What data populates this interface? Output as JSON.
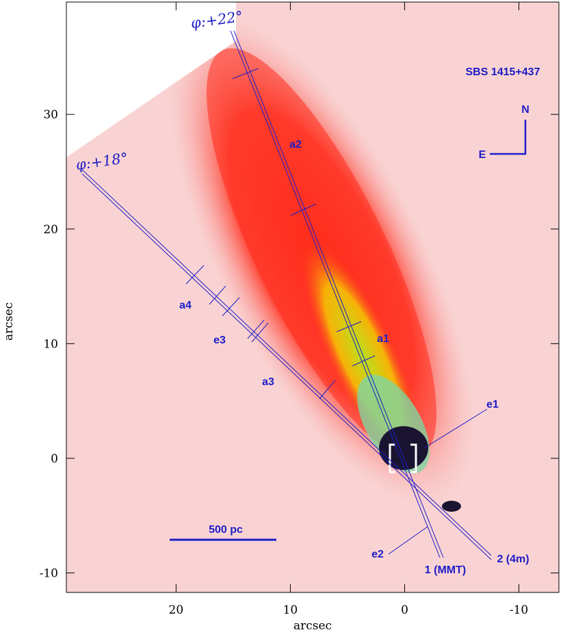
{
  "chart_data": {
    "type": "image",
    "title": "SBS 1415+437",
    "xlabel": "arcsec",
    "ylabel": "arcsec",
    "xlim": [
      29.6,
      -13.5
    ],
    "ylim": [
      -11.7,
      39.8
    ],
    "xticks": [
      20,
      10,
      0,
      -10
    ],
    "yticks": [
      -10,
      0,
      10,
      20,
      30
    ],
    "compass": [
      "N",
      "E"
    ],
    "scale_bar": "500 pc",
    "annotations": [
      "φ:+22°",
      "φ:+18°",
      "a1",
      "a2",
      "a3",
      "a4",
      "e1",
      "e2",
      "e3",
      "1 (MMT)",
      "2 (4m)"
    ]
  }
}
